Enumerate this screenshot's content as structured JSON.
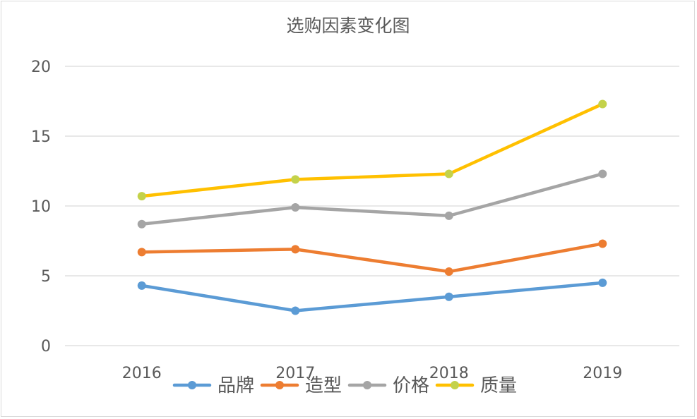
{
  "chart_data": {
    "type": "line",
    "title": "选购因素变化图",
    "categories": [
      "2016",
      "2017",
      "2018",
      "2019"
    ],
    "ylim": [
      0,
      20
    ],
    "yticks": [
      0,
      5,
      10,
      15,
      20
    ],
    "grid": true,
    "legend_position": "bottom",
    "series": [
      {
        "name": "品牌",
        "values": [
          4.3,
          2.5,
          3.5,
          4.5
        ],
        "color": "#5b9bd5",
        "marker_color": "#5b9bd5"
      },
      {
        "name": "造型",
        "values": [
          6.7,
          6.9,
          5.3,
          7.3
        ],
        "color": "#ed7d31",
        "marker_color": "#ed7d31"
      },
      {
        "name": "价格",
        "values": [
          8.7,
          9.9,
          9.3,
          12.3
        ],
        "color": "#a5a5a5",
        "marker_color": "#a5a5a5"
      },
      {
        "name": "质量",
        "values": [
          10.7,
          11.9,
          12.3,
          17.3
        ],
        "color": "#ffc000",
        "marker_color": "#c4d24a"
      }
    ]
  }
}
